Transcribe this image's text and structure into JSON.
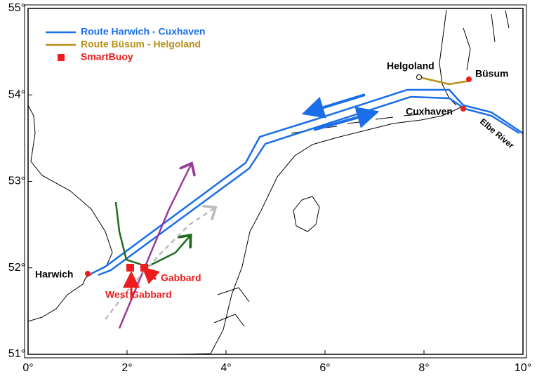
{
  "chart_data": {
    "type": "map",
    "xlim": [
      0,
      10
    ],
    "ylim": [
      51,
      55
    ],
    "xticks": [
      {
        "value": 0,
        "label": "0°"
      },
      {
        "value": 2,
        "label": "2°"
      },
      {
        "value": 4,
        "label": "4°"
      },
      {
        "value": 6,
        "label": "6°"
      },
      {
        "value": 8,
        "label": "8°"
      },
      {
        "value": 10,
        "label": "10°"
      }
    ],
    "yticks": [
      {
        "value": 51,
        "label": "51°"
      },
      {
        "value": 52,
        "label": "52°"
      },
      {
        "value": 53,
        "label": "53°"
      },
      {
        "value": 54,
        "label": "54°"
      },
      {
        "value": 55,
        "label": "55°"
      }
    ],
    "legend": [
      {
        "name": "Route Harwich - Cuxhaven",
        "color": "#1a6ee8"
      },
      {
        "name": "Route Büsum - Helgoland",
        "color": "#b8901a"
      },
      {
        "name": "SmartBuoy",
        "color": "#ee1c1c"
      }
    ],
    "annotations": [
      "Helgoland",
      "Büsum",
      "Cuxhaven",
      "Elbe River",
      "Harwich",
      "Gabbard",
      "West Gabbard"
    ]
  }
}
